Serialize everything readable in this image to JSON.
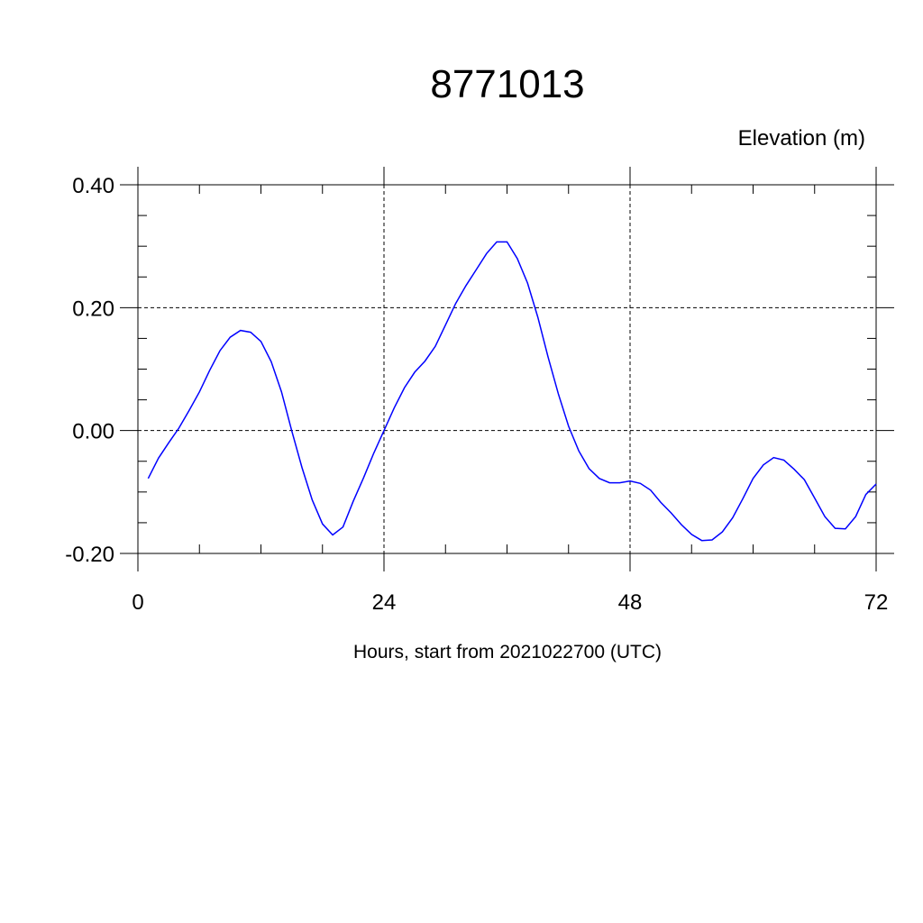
{
  "chart_data": {
    "type": "line",
    "title": "8771013",
    "ylabel": "Elevation (m)",
    "xlabel": "Hours, start from 2021022700 (UTC)",
    "xlim": [
      0,
      72
    ],
    "ylim": [
      -0.2,
      0.4
    ],
    "x_ticks": [
      0,
      24,
      48,
      72
    ],
    "x_tick_labels": [
      "0",
      "24",
      "48",
      "72"
    ],
    "y_ticks": [
      -0.2,
      0.0,
      0.2,
      0.4
    ],
    "y_tick_labels": [
      "-0.20",
      "0.00",
      "0.20",
      "0.40"
    ],
    "grid": true,
    "series": [
      {
        "color": "#0000ff",
        "x": [
          1,
          2,
          3,
          4,
          5,
          6,
          7,
          8,
          9,
          10,
          11,
          12,
          13,
          14,
          15,
          16,
          17,
          18,
          19,
          20,
          21,
          22,
          23,
          24,
          25,
          26,
          27,
          28,
          29,
          30,
          31,
          32,
          33,
          34,
          35,
          36,
          37,
          38,
          39,
          40,
          41,
          42,
          43,
          44,
          45,
          46,
          47,
          48,
          49,
          50,
          51,
          52,
          53,
          54,
          55,
          56,
          57,
          58,
          59,
          60,
          61,
          62,
          63,
          64,
          65,
          66,
          67,
          68,
          69,
          70,
          71,
          72
        ],
        "y": [
          -0.078,
          -0.045,
          -0.02,
          0.004,
          0.033,
          0.063,
          0.098,
          0.13,
          0.152,
          0.163,
          0.16,
          0.145,
          0.112,
          0.063,
          0.0,
          -0.06,
          -0.113,
          -0.152,
          -0.17,
          -0.157,
          -0.115,
          -0.077,
          -0.037,
          0.0,
          0.037,
          0.07,
          0.095,
          0.113,
          0.137,
          0.172,
          0.207,
          0.236,
          0.262,
          0.288,
          0.307,
          0.307,
          0.28,
          0.24,
          0.185,
          0.12,
          0.06,
          0.007,
          -0.033,
          -0.062,
          -0.078,
          -0.085,
          -0.085,
          -0.082,
          -0.086,
          -0.097,
          -0.117,
          -0.134,
          -0.153,
          -0.169,
          -0.179,
          -0.178,
          -0.165,
          -0.142,
          -0.111,
          -0.078,
          -0.056,
          -0.044,
          -0.048,
          -0.063,
          -0.08,
          -0.11,
          -0.14,
          -0.159,
          -0.16,
          -0.14,
          -0.104,
          -0.087
        ]
      }
    ]
  }
}
